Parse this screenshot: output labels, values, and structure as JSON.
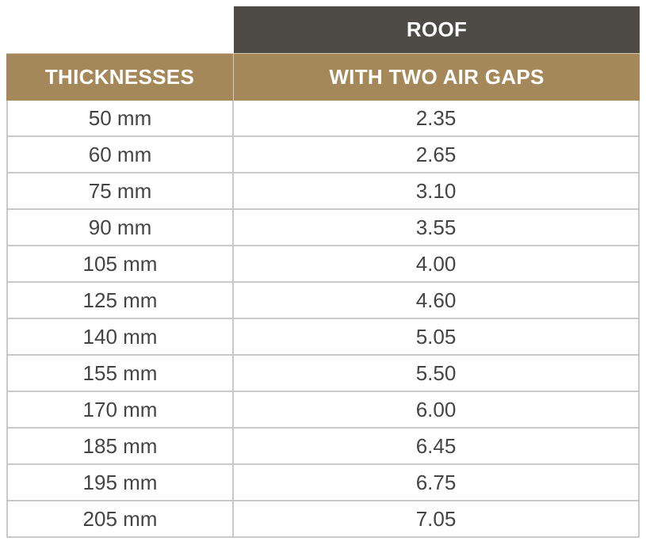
{
  "table": {
    "roof_label": "ROOF",
    "col_thickness": "THICKNESSES",
    "col_value": "WITH TWO AIR GAPS",
    "rows": [
      {
        "thickness": "50 mm",
        "value": "2.35"
      },
      {
        "thickness": "60 mm",
        "value": "2.65"
      },
      {
        "thickness": "75 mm",
        "value": "3.10"
      },
      {
        "thickness": "90 mm",
        "value": "3.55"
      },
      {
        "thickness": "105 mm",
        "value": "4.00"
      },
      {
        "thickness": "125 mm",
        "value": "4.60"
      },
      {
        "thickness": "140 mm",
        "value": "5.05"
      },
      {
        "thickness": "155 mm",
        "value": "5.50"
      },
      {
        "thickness": "170 mm",
        "value": "6.00"
      },
      {
        "thickness": "185 mm",
        "value": "6.45"
      },
      {
        "thickness": "195 mm",
        "value": "6.75"
      },
      {
        "thickness": "205 mm",
        "value": "7.05"
      }
    ]
  },
  "colors": {
    "roof_header_bg": "#4e4a45",
    "column_header_bg": "#a5885a",
    "header_text": "#ffffff",
    "body_text": "#444444",
    "grid_lines": "#c9c9c9"
  }
}
